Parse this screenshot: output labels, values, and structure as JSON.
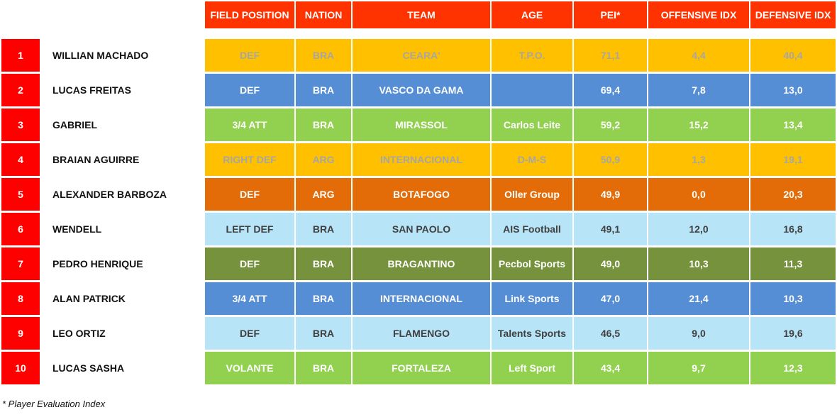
{
  "table": {
    "headers": [
      "FIELD POSITION",
      "NATION",
      "TEAM",
      "AGE",
      "PEI*",
      "OFFENSIVE IDX",
      "DEFENSIVE IDX"
    ],
    "rows": [
      {
        "rank": "1",
        "name": "WILLIAN MACHADO",
        "position": "DEF",
        "nation": "BRA",
        "team": "CEARA'",
        "age": "T.P.O.",
        "pei": "71,1",
        "offensive": "4,4",
        "defensive": "40,4",
        "row_color": "#ffc000",
        "text_color": "#a6a6a6"
      },
      {
        "rank": "2",
        "name": "LUCAS FREITAS",
        "position": "DEF",
        "nation": "BRA",
        "team": "VASCO DA GAMA",
        "age": "",
        "pei": "69,4",
        "offensive": "7,8",
        "defensive": "13,0",
        "row_color": "#558ed5",
        "text_color": "#ffffff"
      },
      {
        "rank": "3",
        "name": "GABRIEL",
        "position": "3/4 ATT",
        "nation": "BRA",
        "team": "MIRASSOL",
        "age": "Carlos Leite",
        "pei": "59,2",
        "offensive": "15,2",
        "defensive": "13,4",
        "row_color": "#92d050",
        "text_color": "#ffffff"
      },
      {
        "rank": "4",
        "name": "BRAIAN AGUIRRE",
        "position": "RIGHT DEF",
        "nation": "ARG",
        "team": "INTERNACIONAL",
        "age": "D-M-S",
        "pei": "50,9",
        "offensive": "1,3",
        "defensive": "19,1",
        "row_color": "#ffc000",
        "text_color": "#a6a6a6"
      },
      {
        "rank": "5",
        "name": "ALEXANDER BARBOZA",
        "position": "DEF",
        "nation": "ARG",
        "team": "BOTAFOGO",
        "age": "Oller Group",
        "pei": "49,9",
        "offensive": "0,0",
        "defensive": "20,3",
        "row_color": "#e36c09",
        "text_color": "#ffffff"
      },
      {
        "rank": "6",
        "name": "WENDELL",
        "position": "LEFT DEF",
        "nation": "BRA",
        "team": "SAN PAOLO",
        "age": "AIS Football",
        "pei": "49,1",
        "offensive": "12,0",
        "defensive": "16,8",
        "row_color": "#b7e4f7",
        "text_color": "#404040"
      },
      {
        "rank": "7",
        "name": "PEDRO HENRIQUE",
        "position": "DEF",
        "nation": "BRA",
        "team": "BRAGANTINO",
        "age": "Pecbol Sports",
        "pei": "49,0",
        "offensive": "10,3",
        "defensive": "11,3",
        "row_color": "#76923c",
        "text_color": "#ffffff"
      },
      {
        "rank": "8",
        "name": "ALAN PATRICK",
        "position": "3/4 ATT",
        "nation": "BRA",
        "team": "INTERNACIONAL",
        "age": "Link Sports",
        "pei": "47,0",
        "offensive": "21,4",
        "defensive": "10,3",
        "row_color": "#558ed5",
        "text_color": "#ffffff"
      },
      {
        "rank": "9",
        "name": "LEO ORTIZ",
        "position": "DEF",
        "nation": "BRA",
        "team": "FLAMENGO",
        "age": "Talents Sports",
        "pei": "46,5",
        "offensive": "9,0",
        "defensive": "19,6",
        "row_color": "#b7e4f7",
        "text_color": "#404040"
      },
      {
        "rank": "10",
        "name": "LUCAS SASHA",
        "position": "VOLANTE",
        "nation": "BRA",
        "team": "FORTALEZA",
        "age": "Left Sport",
        "pei": "43,4",
        "offensive": "9,7",
        "defensive": "12,3",
        "row_color": "#92d050",
        "text_color": "#ffffff"
      }
    ]
  },
  "footnote": "* Player Evaluation Index",
  "colors": {
    "header_bg": "#ff3300",
    "rank_bg": "#ff0000"
  }
}
